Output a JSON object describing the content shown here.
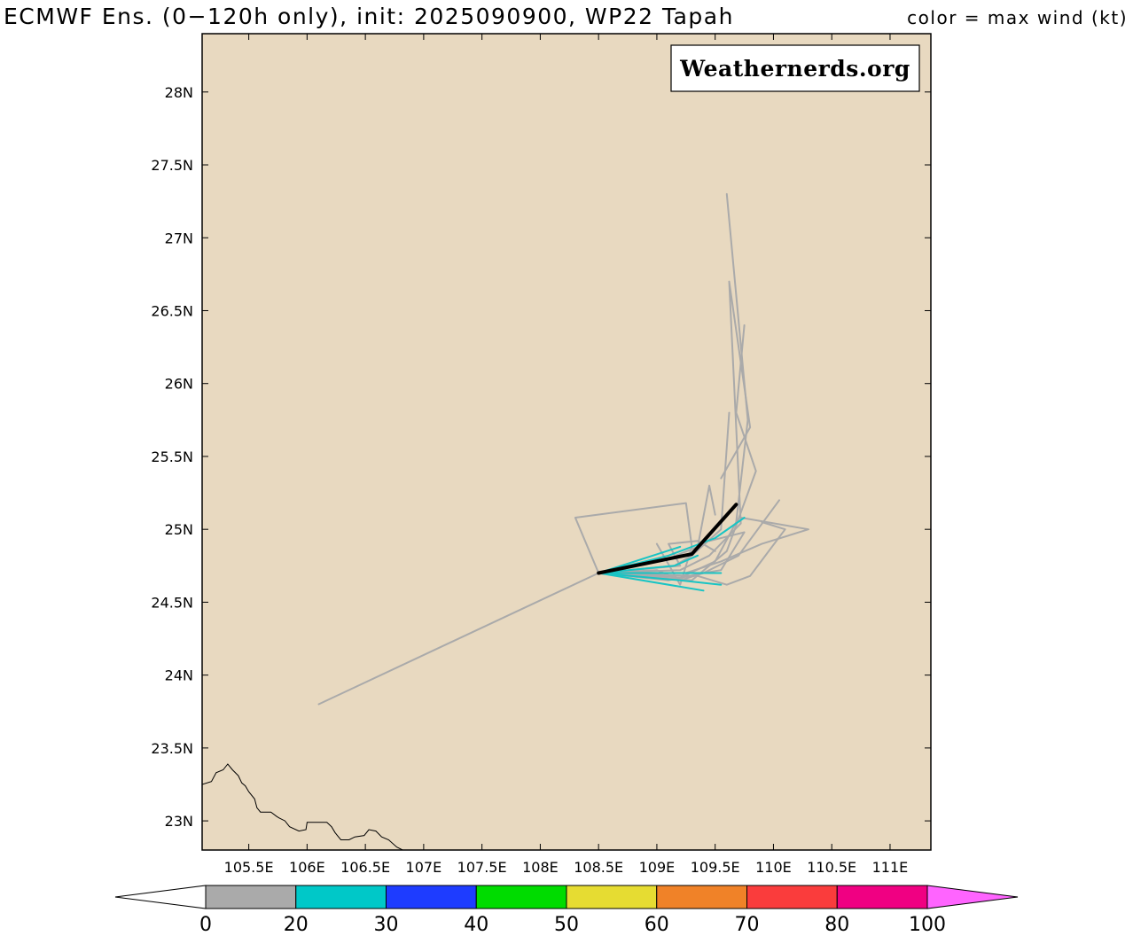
{
  "header": {
    "title": "ECMWF Ens. (0−120h only), init: 2025090900, WP22 Tapah",
    "legend_note": "color = max wind (kt)"
  },
  "watermark": "Weathernerds.org",
  "map": {
    "background_color": "#e8d9c0",
    "extent": {
      "lon_min": 105.1,
      "lon_max": 111.35,
      "lat_min": 22.8,
      "lat_max": 28.4
    },
    "lat_ticks": [
      {
        "value": 28.0,
        "label": "28N"
      },
      {
        "value": 27.5,
        "label": "27.5N"
      },
      {
        "value": 27.0,
        "label": "27N"
      },
      {
        "value": 26.5,
        "label": "26.5N"
      },
      {
        "value": 26.0,
        "label": "26N"
      },
      {
        "value": 25.5,
        "label": "25.5N"
      },
      {
        "value": 25.0,
        "label": "25N"
      },
      {
        "value": 24.5,
        "label": "24.5N"
      },
      {
        "value": 24.0,
        "label": "24N"
      },
      {
        "value": 23.5,
        "label": "23.5N"
      },
      {
        "value": 23.0,
        "label": "23N"
      }
    ],
    "lon_ticks": [
      {
        "value": 105.5,
        "label": "105.5E"
      },
      {
        "value": 106.0,
        "label": "106E"
      },
      {
        "value": 106.5,
        "label": "106.5E"
      },
      {
        "value": 107.0,
        "label": "107E"
      },
      {
        "value": 107.5,
        "label": "107.5E"
      },
      {
        "value": 108.0,
        "label": "108E"
      },
      {
        "value": 108.5,
        "label": "108.5E"
      },
      {
        "value": 109.0,
        "label": "109E"
      },
      {
        "value": 109.5,
        "label": "109.5E"
      },
      {
        "value": 110.0,
        "label": "110E"
      },
      {
        "value": 110.5,
        "label": "110.5E"
      },
      {
        "value": 111.0,
        "label": "111E"
      }
    ],
    "border": [
      [
        105.1,
        23.25
      ],
      [
        105.18,
        23.27
      ],
      [
        105.22,
        23.33
      ],
      [
        105.28,
        23.35
      ],
      [
        105.32,
        23.39
      ],
      [
        105.36,
        23.35
      ],
      [
        105.41,
        23.31
      ],
      [
        105.44,
        23.26
      ],
      [
        105.47,
        23.24
      ],
      [
        105.5,
        23.2
      ],
      [
        105.55,
        23.15
      ],
      [
        105.57,
        23.09
      ],
      [
        105.6,
        23.06
      ],
      [
        105.69,
        23.06
      ],
      [
        105.74,
        23.03
      ],
      [
        105.76,
        23.02
      ],
      [
        105.81,
        23.0
      ],
      [
        105.85,
        22.96
      ],
      [
        105.93,
        22.93
      ],
      [
        105.99,
        22.94
      ],
      [
        106.0,
        22.99
      ],
      [
        106.1,
        22.99
      ],
      [
        106.17,
        22.99
      ],
      [
        106.21,
        22.96
      ],
      [
        106.24,
        22.92
      ],
      [
        106.29,
        22.87
      ],
      [
        106.36,
        22.87
      ],
      [
        106.41,
        22.89
      ],
      [
        106.49,
        22.9
      ],
      [
        106.53,
        22.94
      ],
      [
        106.59,
        22.93
      ],
      [
        106.64,
        22.89
      ],
      [
        106.7,
        22.87
      ],
      [
        106.77,
        22.82
      ],
      [
        106.82,
        22.8
      ]
    ],
    "tracks": [
      {
        "color": "#aaaaaa",
        "points": [
          [
            108.5,
            24.7
          ],
          [
            109.15,
            24.75
          ],
          [
            109.3,
            24.82
          ],
          [
            109.55,
            25.0
          ],
          [
            109.62,
            25.8
          ]
        ]
      },
      {
        "color": "#aaaaaa",
        "points": [
          [
            108.5,
            24.7
          ],
          [
            109.2,
            24.72
          ],
          [
            109.45,
            24.82
          ],
          [
            109.72,
            25.04
          ],
          [
            109.62,
            26.7
          ],
          [
            109.8,
            25.7
          ],
          [
            109.55,
            25.35
          ]
        ]
      },
      {
        "color": "#aaaaaa",
        "points": [
          [
            108.5,
            24.7
          ],
          [
            109.2,
            24.67
          ],
          [
            109.5,
            24.78
          ],
          [
            109.68,
            25.05
          ],
          [
            109.78,
            25.75
          ],
          [
            109.6,
            27.3
          ]
        ]
      },
      {
        "color": "#aaaaaa",
        "points": [
          [
            108.5,
            24.7
          ],
          [
            109.3,
            24.65
          ],
          [
            109.6,
            24.85
          ],
          [
            109.85,
            25.4
          ],
          [
            109.68,
            25.8
          ],
          [
            109.75,
            26.4
          ]
        ]
      },
      {
        "color": "#aaaaaa",
        "points": [
          [
            108.5,
            24.7
          ],
          [
            109.1,
            24.65
          ],
          [
            109.4,
            24.7
          ],
          [
            109.7,
            24.82
          ],
          [
            110.05,
            25.2
          ]
        ]
      },
      {
        "color": "#aaaaaa",
        "points": [
          [
            108.5,
            24.7
          ],
          [
            109.25,
            24.7
          ],
          [
            109.55,
            24.78
          ],
          [
            109.9,
            24.9
          ],
          [
            110.3,
            25.0
          ],
          [
            109.72,
            25.08
          ]
        ]
      },
      {
        "color": "#aaaaaa",
        "points": [
          [
            108.5,
            24.7
          ],
          [
            109.35,
            24.68
          ],
          [
            109.6,
            24.62
          ],
          [
            109.8,
            24.68
          ],
          [
            110.1,
            25.0
          ],
          [
            109.9,
            25.05
          ]
        ]
      },
      {
        "color": "#aaaaaa",
        "points": [
          [
            108.5,
            24.7
          ],
          [
            109.1,
            24.8
          ],
          [
            109.35,
            24.88
          ],
          [
            109.45,
            25.3
          ],
          [
            109.5,
            25.1
          ]
        ]
      },
      {
        "color": "#aaaaaa",
        "points": [
          [
            108.5,
            24.7
          ],
          [
            109.2,
            24.75
          ],
          [
            109.1,
            24.9
          ],
          [
            109.35,
            24.92
          ],
          [
            109.5,
            24.85
          ]
        ]
      },
      {
        "color": "#aaaaaa",
        "points": [
          [
            108.5,
            24.7
          ],
          [
            109.0,
            24.72
          ],
          [
            109.2,
            24.65
          ],
          [
            109.4,
            24.7
          ],
          [
            109.55,
            24.72
          ],
          [
            109.75,
            24.98
          ],
          [
            109.45,
            24.92
          ]
        ]
      },
      {
        "color": "#aaaaaa",
        "points": [
          [
            108.5,
            24.7
          ],
          [
            108.3,
            25.08
          ],
          [
            109.25,
            25.18
          ],
          [
            109.3,
            24.88
          ],
          [
            109.2,
            24.62
          ],
          [
            109.0,
            24.9
          ]
        ]
      },
      {
        "color": "#aaaaaa",
        "points": [
          [
            108.5,
            24.7
          ],
          [
            106.1,
            23.8
          ]
        ]
      },
      {
        "color": "#18c4c4",
        "points": [
          [
            108.5,
            24.7
          ],
          [
            109.1,
            24.82
          ],
          [
            109.5,
            24.94
          ],
          [
            109.75,
            25.08
          ]
        ]
      },
      {
        "color": "#18c4c4",
        "points": [
          [
            108.5,
            24.7
          ],
          [
            109.15,
            24.75
          ],
          [
            109.35,
            24.82
          ]
        ]
      },
      {
        "color": "#18c4c4",
        "points": [
          [
            108.5,
            24.7
          ],
          [
            109.2,
            24.88
          ]
        ]
      },
      {
        "color": "#18c4c4",
        "points": [
          [
            108.5,
            24.7
          ],
          [
            109.2,
            24.65
          ],
          [
            109.55,
            24.62
          ]
        ]
      },
      {
        "color": "#18c4c4",
        "points": [
          [
            108.5,
            24.7
          ],
          [
            109.3,
            24.7
          ],
          [
            109.55,
            24.7
          ]
        ]
      },
      {
        "color": "#18c4c4",
        "points": [
          [
            108.5,
            24.7
          ],
          [
            109.4,
            24.58
          ]
        ]
      },
      {
        "color": "#000000",
        "mean": true,
        "points": [
          [
            108.5,
            24.7
          ],
          [
            109.3,
            24.83
          ],
          [
            109.68,
            25.17
          ]
        ]
      }
    ]
  },
  "colorbar": {
    "segments": [
      {
        "from": 0,
        "to": 20,
        "color": "#aaaaaa"
      },
      {
        "from": 20,
        "to": 30,
        "color": "#00c8c8"
      },
      {
        "from": 30,
        "to": 40,
        "color": "#1e3cff"
      },
      {
        "from": 40,
        "to": 50,
        "color": "#00dc00"
      },
      {
        "from": 50,
        "to": 60,
        "color": "#e6dc32"
      },
      {
        "from": 60,
        "to": 70,
        "color": "#f08228"
      },
      {
        "from": 70,
        "to": 80,
        "color": "#fa3c3c"
      },
      {
        "from": 80,
        "to": 100,
        "color": "#f00082"
      }
    ],
    "under_color": "#ffffff",
    "over_color": "#ff64ff",
    "labels": [
      "0",
      "20",
      "30",
      "40",
      "50",
      "60",
      "70",
      "80",
      "100"
    ]
  }
}
